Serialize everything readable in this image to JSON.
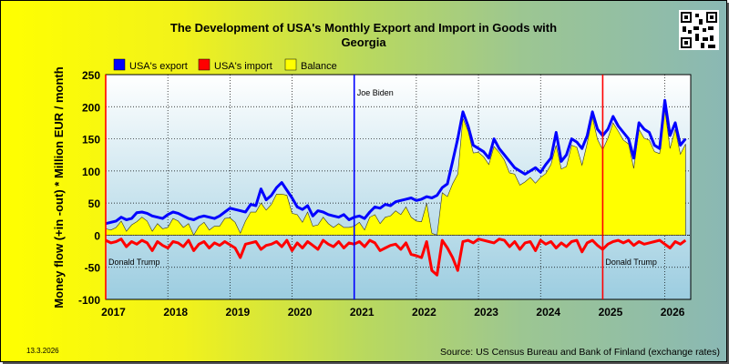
{
  "chart_data": {
    "type": "area",
    "title_line1": "The Development of USA's Monthly Export and Import in Goods with",
    "title_line2": "Georgia",
    "ylabel": "Money flow (+in -out) * Million EUR / month",
    "ylim": [
      -100,
      250
    ],
    "yticks": [
      "250",
      "200",
      "150",
      "100",
      "50",
      "0",
      "-50",
      "-100"
    ],
    "yticks_values": [
      250,
      200,
      150,
      100,
      50,
      0,
      -50,
      -100
    ],
    "xlim": [
      "2017-01",
      "2026-06"
    ],
    "xticks": [
      "2017",
      "2018",
      "2019",
      "2020",
      "2021",
      "2022",
      "2023",
      "2024",
      "2025",
      "2026"
    ],
    "grid": true,
    "legend": {
      "position": "top-left",
      "entries": [
        {
          "label": "USA's export",
          "color": "#0000ff"
        },
        {
          "label": "USA's import",
          "color": "#ff0000"
        },
        {
          "label": "Balance",
          "color": "#ffff00"
        }
      ]
    },
    "markers": [
      {
        "label": "Donald Trump",
        "date": "2017-01",
        "color": "#ff0000"
      },
      {
        "label": "Joe Biden",
        "date": "2021-01",
        "color": "#0000ff"
      },
      {
        "label": "Donald Trump",
        "date": "2025-01",
        "color": "#ff0000"
      }
    ],
    "series": [
      {
        "name": "USA's export",
        "color": "#0000ff",
        "start": "2017-01",
        "values": [
          18,
          20,
          22,
          28,
          24,
          26,
          35,
          36,
          34,
          30,
          28,
          26,
          32,
          36,
          34,
          30,
          26,
          24,
          28,
          30,
          28,
          26,
          30,
          36,
          42,
          40,
          38,
          36,
          48,
          46,
          72,
          55,
          62,
          74,
          82,
          70,
          58,
          44,
          40,
          46,
          30,
          38,
          36,
          32,
          30,
          28,
          32,
          24,
          28,
          30,
          26,
          36,
          44,
          42,
          48,
          46,
          52,
          54,
          56,
          58,
          54,
          56,
          60,
          58,
          62,
          74,
          80,
          115,
          150,
          192,
          170,
          140,
          135,
          130,
          120,
          150,
          135,
          125,
          115,
          105,
          100,
          95,
          100,
          105,
          98,
          110,
          120,
          160,
          115,
          125,
          150,
          145,
          135,
          155,
          192,
          165,
          155,
          165,
          185,
          170,
          160,
          150,
          120,
          175,
          165,
          160,
          140,
          135,
          210,
          155,
          175,
          140,
          150
        ]
      },
      {
        "name": "USA's import",
        "color": "#ff0000",
        "start": "2017-01",
        "values": [
          -8,
          -12,
          -10,
          -6,
          -18,
          -10,
          -14,
          -8,
          -12,
          -24,
          -10,
          -16,
          -20,
          -10,
          -12,
          -18,
          -8,
          -24,
          -14,
          -10,
          -20,
          -12,
          -16,
          -10,
          -15,
          -20,
          -35,
          -14,
          -12,
          -10,
          -22,
          -16,
          -14,
          -10,
          -18,
          -8,
          -24,
          -12,
          -20,
          -10,
          -16,
          -22,
          -8,
          -14,
          -18,
          -10,
          -20,
          -12,
          -14,
          -10,
          -18,
          -8,
          -12,
          -24,
          -20,
          -16,
          -14,
          -22,
          -12,
          -30,
          -32,
          -35,
          -10,
          -55,
          -62,
          -8,
          -20,
          -35,
          -55,
          -10,
          -8,
          -12,
          -6,
          -8,
          -10,
          -12,
          -6,
          -8,
          -18,
          -10,
          -22,
          -12,
          -10,
          -24,
          -8,
          -14,
          -10,
          -20,
          -12,
          -18,
          -10,
          -8,
          -26,
          -12,
          -8,
          -16,
          -22,
          -14,
          -10,
          -8,
          -12,
          -8,
          -16,
          -10,
          -14,
          -12,
          -10,
          -8,
          -14,
          -20,
          -10,
          -14,
          -8
        ]
      }
    ]
  },
  "footer_date": "13.3.2026",
  "source": "Source: US Census Bureau and Bank of Finland (exchange rates)"
}
